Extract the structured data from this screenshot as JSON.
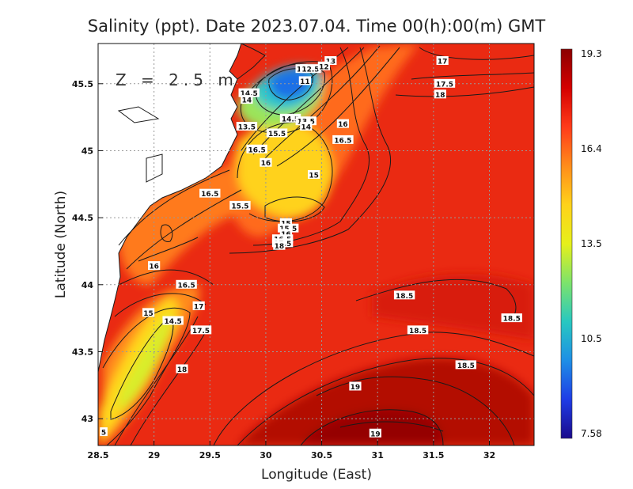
{
  "chart_data": {
    "type": "heatmap",
    "title": "Salinity (ppt). Date 2023.07.04. Time 00(h):00(m) GMT",
    "annotation": "Z = 2.5 m",
    "xlabel": "Longitude (East)",
    "ylabel": "Latitude (North)",
    "xlim": [
      28.5,
      32.4
    ],
    "ylim": [
      42.8,
      45.8
    ],
    "x_ticks": [
      "28.5",
      "29",
      "29.5",
      "30",
      "30.5",
      "31",
      "31.5",
      "32"
    ],
    "y_ticks": [
      "43",
      "43.5",
      "44",
      "44.5",
      "45",
      "45.5"
    ],
    "grid": true,
    "colorbar": {
      "min": 7.58,
      "max": 19.3,
      "tick_labels": [
        "19.3",
        "16.4",
        "13.5",
        "10.5",
        "7.58"
      ],
      "colors": [
        "#8b0000",
        "#d40000",
        "#ff3b1a",
        "#ff8c1a",
        "#ffd21a",
        "#e6f01a",
        "#7de36b",
        "#28c8c0",
        "#1e8fe6",
        "#1e3ce6",
        "#1a0a8c"
      ]
    },
    "contour_labels": [
      {
        "x": 30.32,
        "y": 45.61,
        "label": "12"
      },
      {
        "x": 30.4,
        "y": 45.61,
        "label": "12.5"
      },
      {
        "x": 30.58,
        "y": 45.67,
        "label": "13"
      },
      {
        "x": 30.52,
        "y": 45.63,
        "label": "12"
      },
      {
        "x": 30.35,
        "y": 45.52,
        "label": "11"
      },
      {
        "x": 29.85,
        "y": 45.43,
        "label": "14.5"
      },
      {
        "x": 29.83,
        "y": 45.38,
        "label": "14"
      },
      {
        "x": 29.83,
        "y": 45.18,
        "label": "13.5"
      },
      {
        "x": 30.22,
        "y": 45.24,
        "label": "14.5"
      },
      {
        "x": 30.36,
        "y": 45.22,
        "label": "13.5"
      },
      {
        "x": 30.36,
        "y": 45.18,
        "label": "14"
      },
      {
        "x": 30.1,
        "y": 45.13,
        "label": "15.5"
      },
      {
        "x": 30.69,
        "y": 45.2,
        "label": "16"
      },
      {
        "x": 30.69,
        "y": 45.08,
        "label": "16.5"
      },
      {
        "x": 29.92,
        "y": 45.01,
        "label": "16.5"
      },
      {
        "x": 30.0,
        "y": 44.91,
        "label": "16"
      },
      {
        "x": 30.43,
        "y": 44.82,
        "label": "15"
      },
      {
        "x": 29.5,
        "y": 44.68,
        "label": "16.5"
      },
      {
        "x": 29.77,
        "y": 44.59,
        "label": "15.5"
      },
      {
        "x": 30.18,
        "y": 44.46,
        "label": "15"
      },
      {
        "x": 30.2,
        "y": 44.42,
        "label": "15.5"
      },
      {
        "x": 30.18,
        "y": 44.38,
        "label": "16"
      },
      {
        "x": 30.15,
        "y": 44.34,
        "label": "16.5"
      },
      {
        "x": 30.15,
        "y": 44.31,
        "label": "17.5"
      },
      {
        "x": 30.12,
        "y": 44.29,
        "label": "18"
      },
      {
        "x": 29.0,
        "y": 44.14,
        "label": "16"
      },
      {
        "x": 29.29,
        "y": 44.0,
        "label": "16.5"
      },
      {
        "x": 29.4,
        "y": 43.84,
        "label": "17"
      },
      {
        "x": 28.95,
        "y": 43.79,
        "label": "15"
      },
      {
        "x": 29.17,
        "y": 43.73,
        "label": "14.5"
      },
      {
        "x": 29.42,
        "y": 43.66,
        "label": "17.5"
      },
      {
        "x": 29.25,
        "y": 43.37,
        "label": "18"
      },
      {
        "x": 31.58,
        "y": 45.67,
        "label": "17"
      },
      {
        "x": 31.6,
        "y": 45.5,
        "label": "17.5"
      },
      {
        "x": 31.56,
        "y": 45.42,
        "label": "18"
      },
      {
        "x": 31.24,
        "y": 43.92,
        "label": "18.5"
      },
      {
        "x": 32.2,
        "y": 43.75,
        "label": "18.5"
      },
      {
        "x": 31.36,
        "y": 43.66,
        "label": "18.5"
      },
      {
        "x": 31.79,
        "y": 43.4,
        "label": "18.5"
      },
      {
        "x": 30.8,
        "y": 43.24,
        "label": "19"
      },
      {
        "x": 30.98,
        "y": 42.89,
        "label": "19"
      },
      {
        "x": 28.55,
        "y": 42.9,
        "label": "5"
      }
    ]
  }
}
